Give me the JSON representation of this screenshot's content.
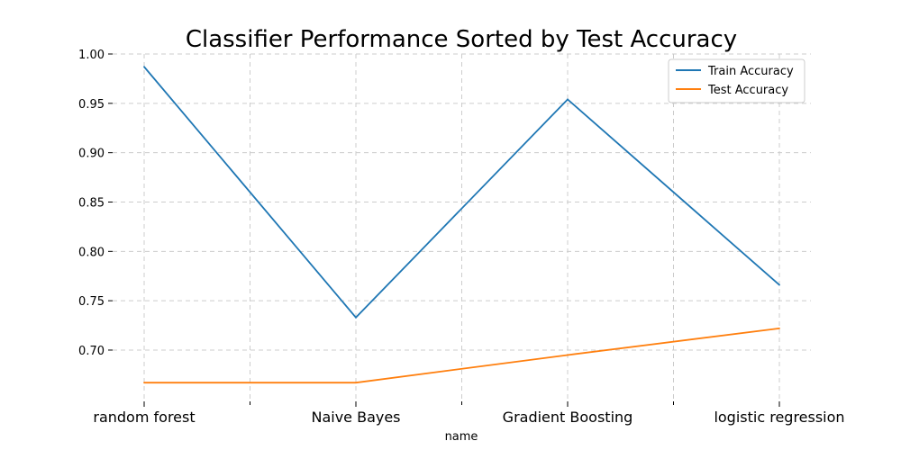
{
  "chart_data": {
    "type": "line",
    "title": "Classifier Performance Sorted by Test Accuracy",
    "xlabel": "name",
    "ylabel": "",
    "categories": [
      "random forest",
      "Naive Bayes",
      "Gradient Boosting",
      "logistic regression"
    ],
    "series": [
      {
        "name": "Train Accuracy",
        "color": "#1f77b4",
        "values": [
          0.987,
          0.733,
          0.954,
          0.766
        ]
      },
      {
        "name": "Test Accuracy",
        "color": "#ff7f0e",
        "values": [
          0.667,
          0.667,
          0.695,
          0.722
        ]
      }
    ],
    "yticks": [
      "0.70",
      "0.75",
      "0.80",
      "0.85",
      "0.90",
      "0.95",
      "1.00"
    ],
    "ylim": [
      0.648,
      1.0
    ],
    "grid": true,
    "legend_position": "top-right"
  }
}
